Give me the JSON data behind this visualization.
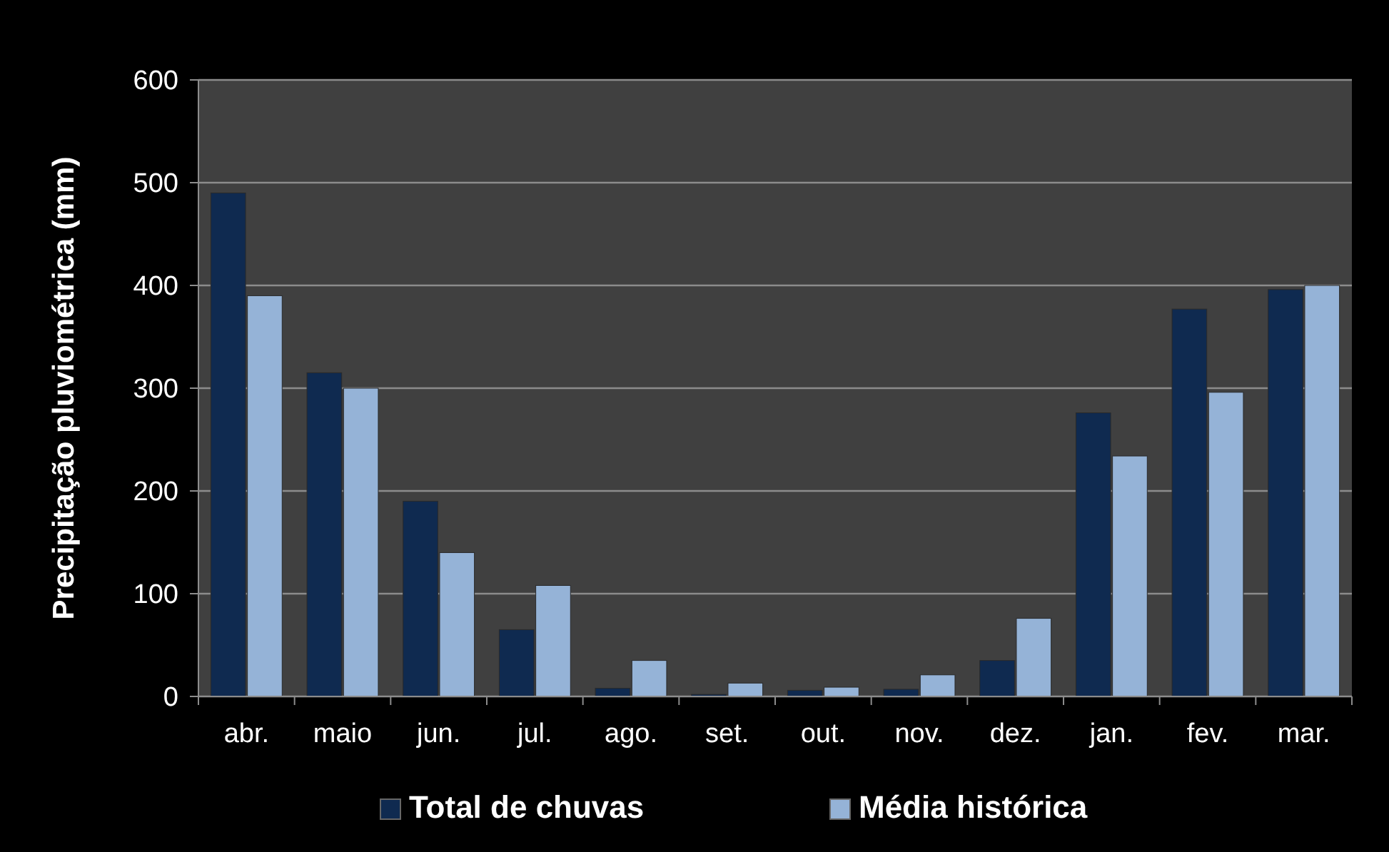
{
  "chart_data": {
    "type": "bar",
    "ylabel": "Precipitação pluviométrica (mm)",
    "categories": [
      "abr.",
      "maio",
      "jun.",
      "jul.",
      "ago.",
      "set.",
      "out.",
      "nov.",
      "dez.",
      "jan.",
      "fev.",
      "mar."
    ],
    "series": [
      {
        "name": "Total de chuvas",
        "color": "#0f2a50",
        "values": [
          490,
          315,
          190,
          65,
          8,
          2,
          6,
          7,
          35,
          276,
          377,
          396
        ]
      },
      {
        "name": "Média histórica",
        "color": "#95b3d7",
        "values": [
          390,
          300,
          140,
          108,
          35,
          13,
          9,
          21,
          76,
          234,
          296,
          400
        ]
      }
    ],
    "ylim": [
      0,
      600
    ],
    "yticks": [
      0,
      100,
      200,
      300,
      400,
      500,
      600
    ],
    "grid": "y",
    "legend": "bottom"
  }
}
